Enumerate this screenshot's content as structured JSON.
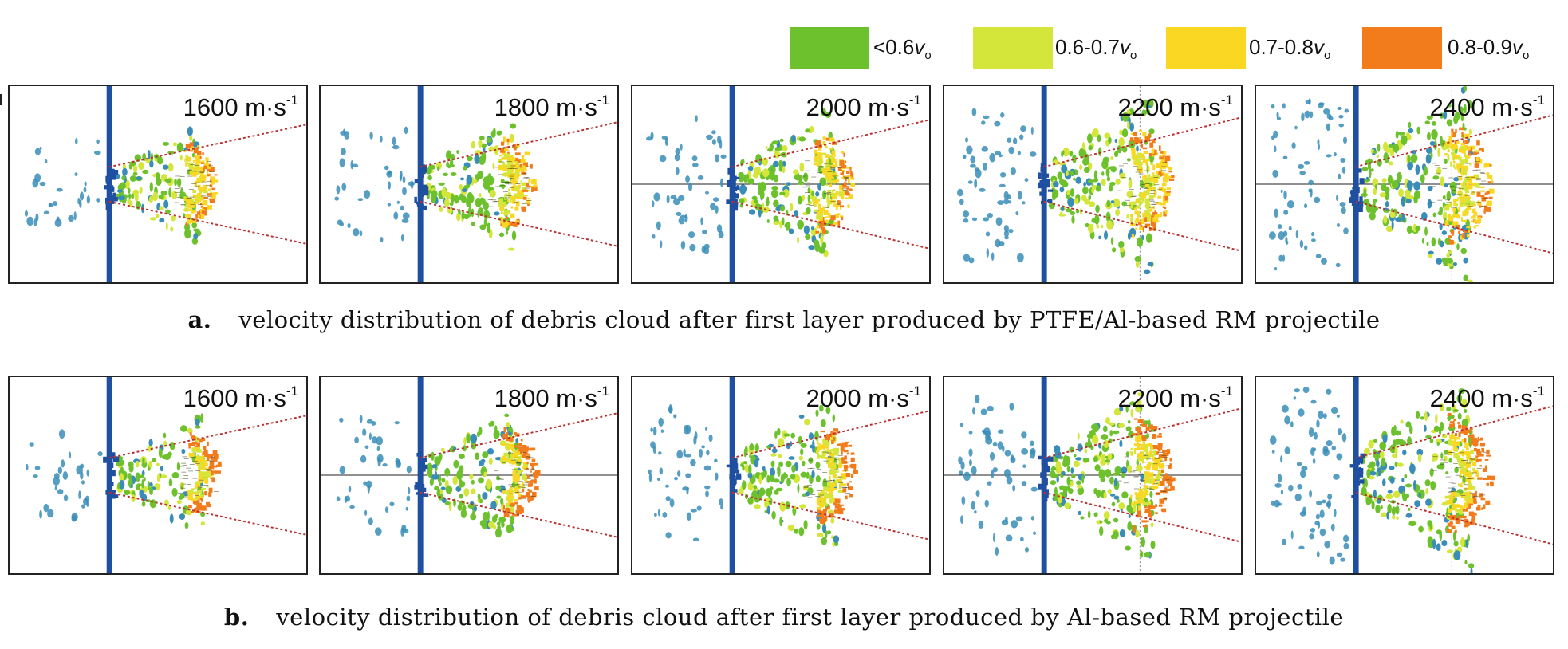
{
  "legend": [
    {
      "label": "<0.6",
      "unit": "v",
      "sub": "o",
      "color": "#6cc12c"
    },
    {
      "label": "0.6-0.7",
      "unit": "v",
      "sub": "o",
      "color": "#d4e63a"
    },
    {
      "label": "0.7-0.8",
      "unit": "v",
      "sub": "o",
      "color": "#fad722"
    },
    {
      "label": "0.8-0.9",
      "unit": "v",
      "sub": "o",
      "color": "#f27b1c"
    }
  ],
  "rows": [
    {
      "caption_label": "a.",
      "caption_text": "velocity distribution of debris cloud after first layer produced by PTFE/Al-based RM projectile",
      "panels": [
        {
          "speed": "1600 m·s",
          "exp": "-1",
          "axis": false
        },
        {
          "speed": "1800 m·s",
          "exp": "-1",
          "axis": false
        },
        {
          "speed": "2000 m·s",
          "exp": "-1",
          "axis": true
        },
        {
          "speed": "2200 m·s",
          "exp": "-1",
          "axis": false
        },
        {
          "speed": "2400 m·s",
          "exp": "-1",
          "axis": true
        }
      ]
    },
    {
      "caption_label": "b.",
      "caption_text": "velocity distribution of debris cloud after first layer produced by Al-based RM projectile",
      "panels": [
        {
          "speed": "1600 m·s",
          "exp": "-1",
          "axis": false
        },
        {
          "speed": "1800 m·s",
          "exp": "-1",
          "axis": true
        },
        {
          "speed": "2000 m·s",
          "exp": "-1",
          "axis": false
        },
        {
          "speed": "2200 m·s",
          "exp": "-1",
          "axis": true
        },
        {
          "speed": "2400 m·s",
          "exp": "-1",
          "axis": false
        }
      ]
    }
  ],
  "colors": {
    "plate": "#1f4fa0",
    "cone": "#b83030",
    "cold": "#3a8db8",
    "green": "#6cc12c",
    "lime": "#d4e63a",
    "yellow": "#fad722",
    "orange": "#f27b1c"
  }
}
